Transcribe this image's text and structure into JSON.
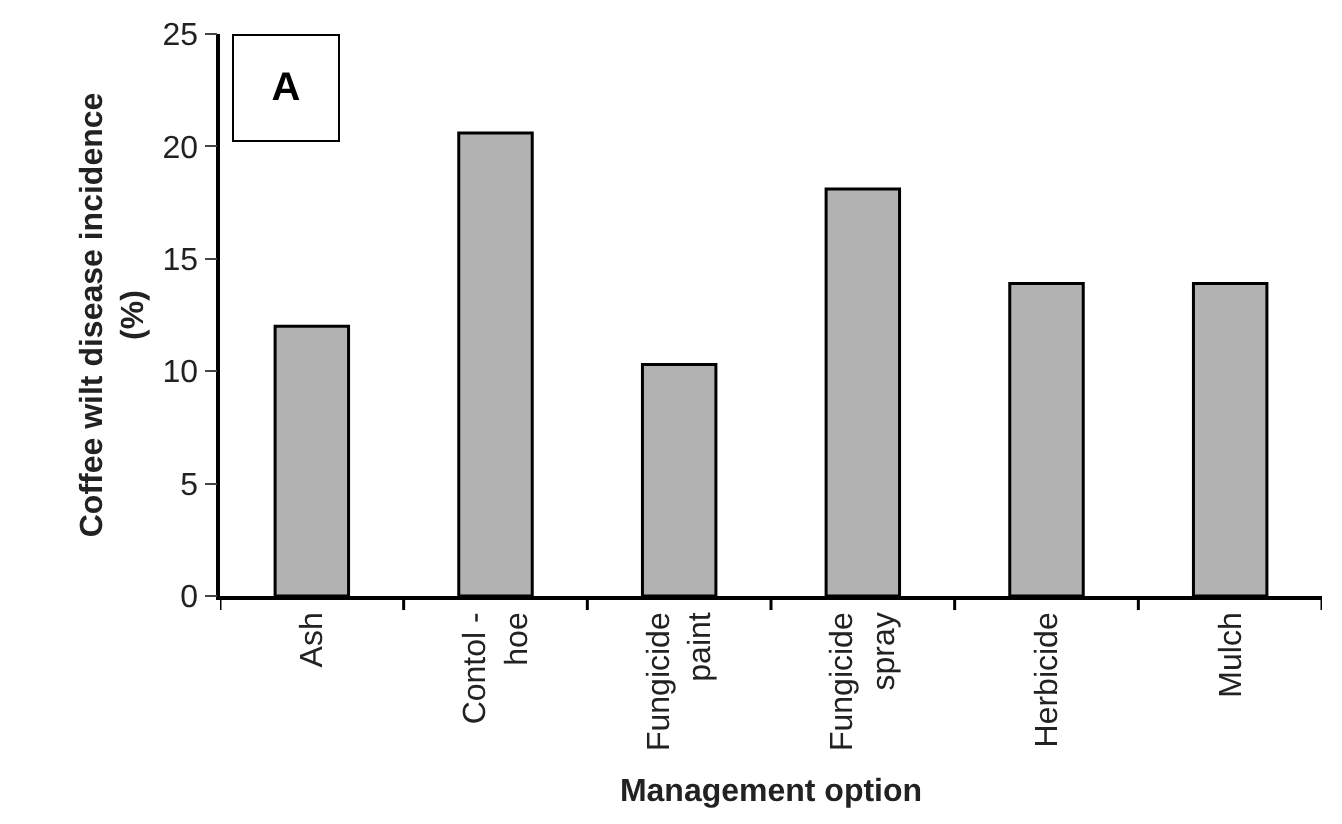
{
  "chart_data": {
    "type": "bar",
    "xlabel": "Management option",
    "ylabel": "Coffee wilt disease incidence\n(%)",
    "categories": [
      "Ash",
      "Contol -\nhoe",
      "Fungicide\npaint",
      "Fungicide\nspray",
      "Herbicide",
      "Mulch"
    ],
    "values": [
      12.0,
      20.6,
      10.3,
      18.1,
      13.9,
      13.9
    ],
    "color": "#b2b2b2",
    "ylim": [
      0,
      25
    ],
    "yticks": [
      0,
      5,
      10,
      15,
      20,
      25
    ],
    "annotations": [
      "A"
    ]
  }
}
